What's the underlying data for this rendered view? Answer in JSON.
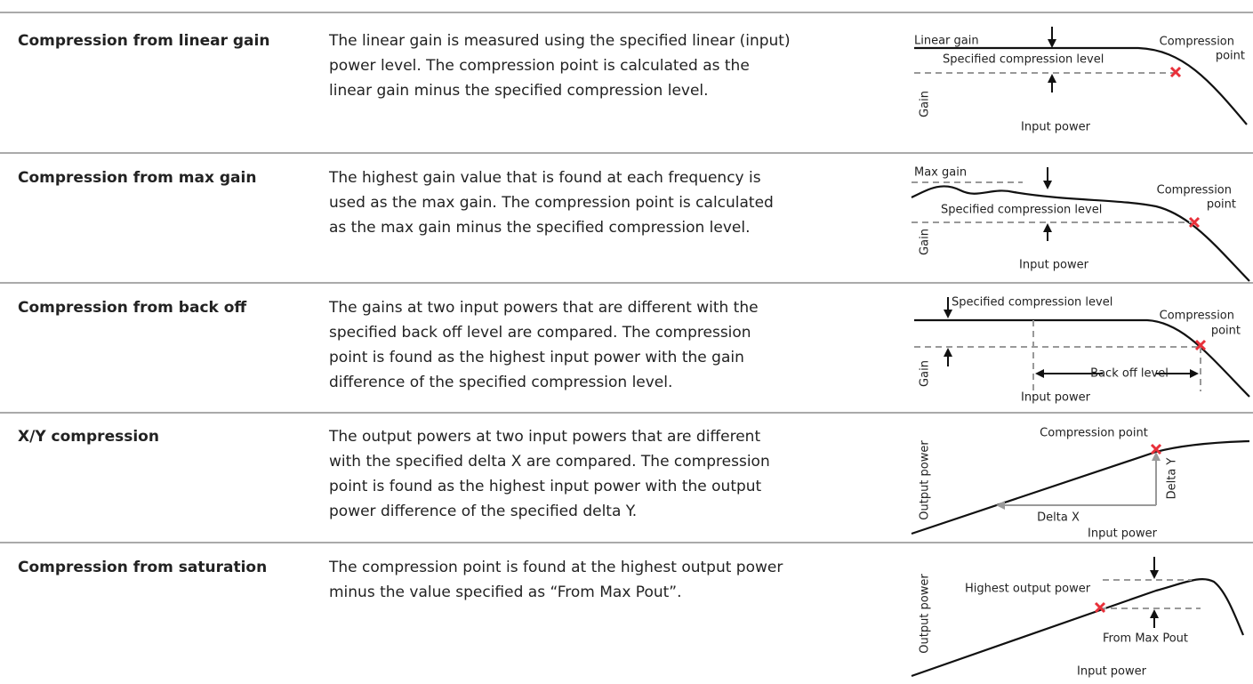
{
  "rows": [
    {
      "name": "Compression from linear gain",
      "description": [
        "The linear gain is measured using the specified linear (input)",
        "power level. The compression point is calculated as the",
        "linear gain minus the specified compression level."
      ],
      "diagram": {
        "labels": [
          "Linear gain",
          "Specified compression level",
          "Compression",
          "point",
          "Gain",
          "Input power"
        ]
      }
    },
    {
      "name": "Compression from max gain",
      "description": [
        "The highest gain value that is found at each frequency is",
        "used as the max gain. The compression point is calculated",
        "as the max gain minus the specified compression level."
      ],
      "diagram": {
        "labels": [
          "Max gain",
          "Specified compression level",
          "Compression",
          "point",
          "Gain",
          "Input power"
        ]
      }
    },
    {
      "name": "Compression from back off",
      "description": [
        "The gains at two input powers that are different with the",
        "specified back off level are compared. The compression",
        "point is found as the highest input power with the gain",
        "difference of the specified compression level."
      ],
      "diagram": {
        "labels": [
          "Specified compression level",
          "Compression",
          "point",
          "Back off level",
          "Gain",
          "Input power"
        ]
      }
    },
    {
      "name": "X/Y compression",
      "description": [
        "The output powers at two input powers that are different",
        "with the specified delta X are compared. The compression",
        "point is found as the highest input power with the output",
        "power difference of the specified delta Y."
      ],
      "diagram": {
        "labels": [
          "Compression point",
          "Delta Y",
          "Delta X",
          "Output power",
          "Input power"
        ]
      }
    },
    {
      "name": "Compression from saturation",
      "description": [
        "The compression point is found at the highest output power",
        "minus the value specified as “From Max Pout”."
      ],
      "diagram": {
        "labels": [
          "Highest output power",
          "From Max Pout",
          "Output power",
          "Input power"
        ]
      }
    }
  ]
}
